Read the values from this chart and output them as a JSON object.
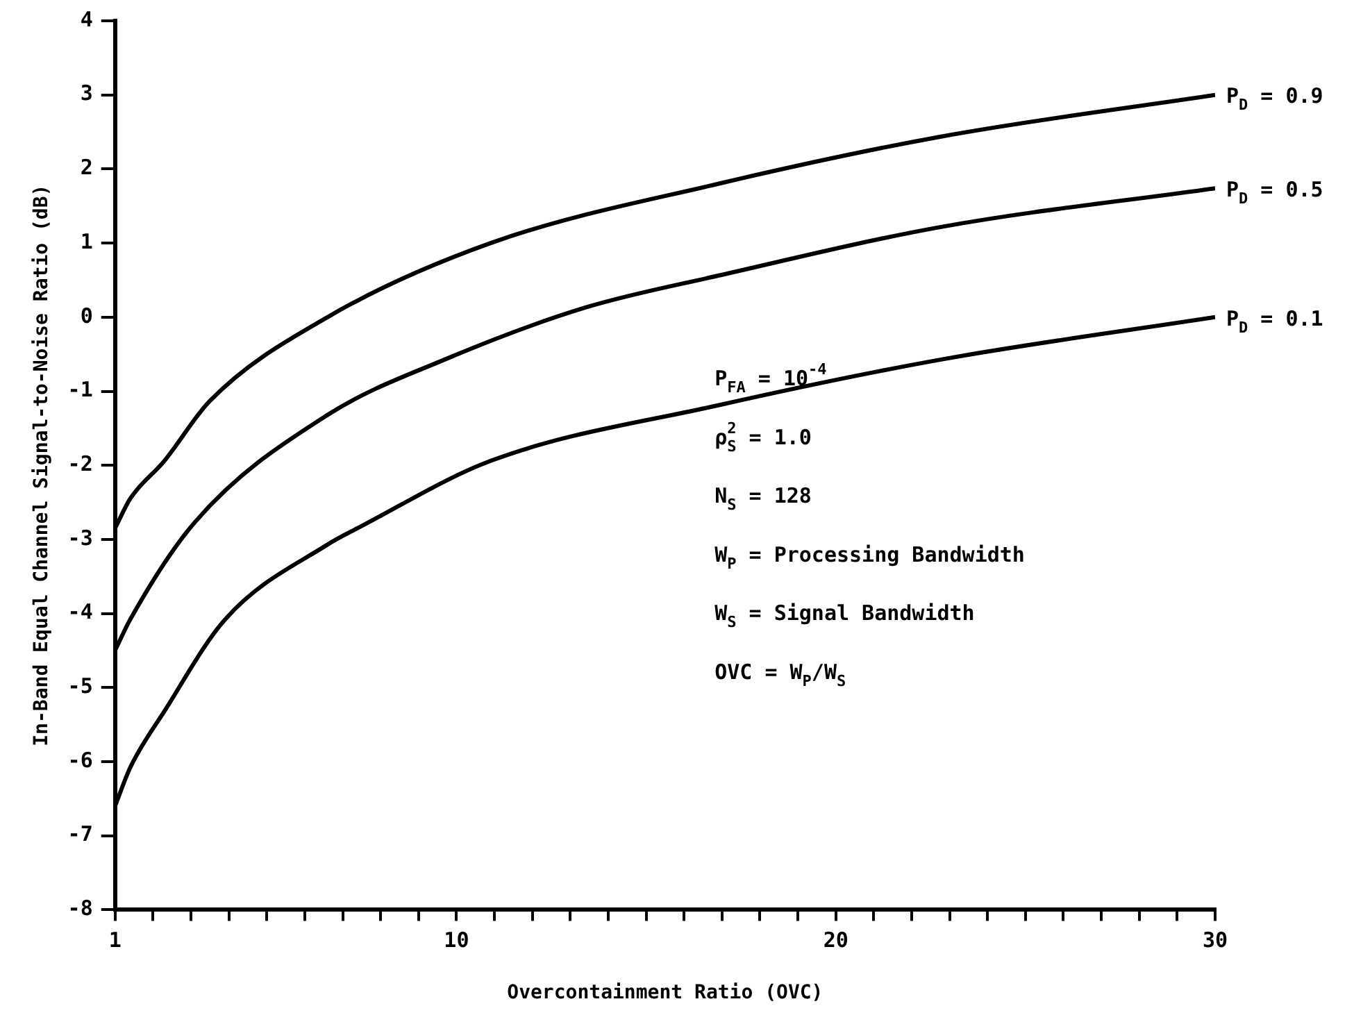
{
  "chart_data": {
    "type": "line",
    "xlabel": "Overcontainment Ratio (OVC)",
    "ylabel": "In-Band Equal Channel Signal-to-Noise Ratio (dB)",
    "xlim": [
      1,
      30
    ],
    "xticks": [
      1,
      {
        "value": 2,
        "label": null
      },
      {
        "value": 3,
        "label": null
      },
      {
        "value": 4,
        "label": null
      },
      {
        "value": 5,
        "label": null
      },
      {
        "value": 6,
        "label": null
      },
      {
        "value": 7,
        "label": null
      },
      {
        "value": 8,
        "label": null
      },
      {
        "value": 9,
        "label": null
      },
      10,
      {
        "value": 11,
        "label": null
      },
      {
        "value": 12,
        "label": null
      },
      {
        "value": 13,
        "label": null
      },
      {
        "value": 14,
        "label": null
      },
      {
        "value": 15,
        "label": null
      },
      {
        "value": 16,
        "label": null
      },
      {
        "value": 17,
        "label": null
      },
      {
        "value": 18,
        "label": null
      },
      {
        "value": 19,
        "label": null
      },
      20,
      {
        "value": 21,
        "label": null
      },
      {
        "value": 22,
        "label": null
      },
      {
        "value": 23,
        "label": null
      },
      {
        "value": 24,
        "label": null
      },
      {
        "value": 25,
        "label": null
      },
      {
        "value": 26,
        "label": null
      },
      {
        "value": 27,
        "label": null
      },
      {
        "value": 28,
        "label": null
      },
      {
        "value": 29,
        "label": null
      },
      30
    ],
    "ylim": [
      -8,
      4
    ],
    "yticks": [
      -8,
      -7,
      -6,
      -5,
      -4,
      -3,
      -2,
      -1,
      0,
      1,
      2,
      3,
      4
    ],
    "grid": false,
    "legend": false,
    "marker": "none",
    "line_style": "solid",
    "series": [
      {
        "name": "P$_{D}$ = 0.9",
        "color": "#000000",
        "x": [
          1,
          1.4,
          2.3,
          3.5,
          6.6,
          10.9,
          16.9,
          22.8,
          30
        ],
        "values": [
          -2.85,
          -2.45,
          -1.94,
          -1.13,
          0.0,
          1.0,
          1.8,
          2.44,
          3.0
        ]
      },
      {
        "name": "P$_{D}$ = 0.5",
        "color": "#000000",
        "x": [
          1,
          1.4,
          3.1,
          6.6,
          9.7,
          13.4,
          16.9,
          22.8,
          30
        ],
        "values": [
          -4.5,
          -4.08,
          -2.77,
          -1.32,
          -0.57,
          0.13,
          0.56,
          1.22,
          1.74
        ]
      },
      {
        "name": "P$_{D}$ = 0.1",
        "color": "#000000",
        "x": [
          1,
          1.4,
          2.3,
          3.9,
          6.6,
          7.5,
          10.9,
          16.9,
          22.8,
          30
        ],
        "values": [
          -6.6,
          -6.08,
          -5.32,
          -4.08,
          -3.07,
          -2.82,
          -1.94,
          -1.19,
          -0.57,
          0.0
        ]
      }
    ],
    "annotations": [
      "P$_{FA}$ = 10$^{-4}$",
      "ρ$_{S}$$^{2}$ = 1.0",
      "N$_{S}$ = 128",
      "W$_{P}$ = Processing Bandwidth",
      "W$_{S}$ = Signal Bandwidth",
      "OVC = W$_{P}$/W$_{S}$"
    ]
  }
}
